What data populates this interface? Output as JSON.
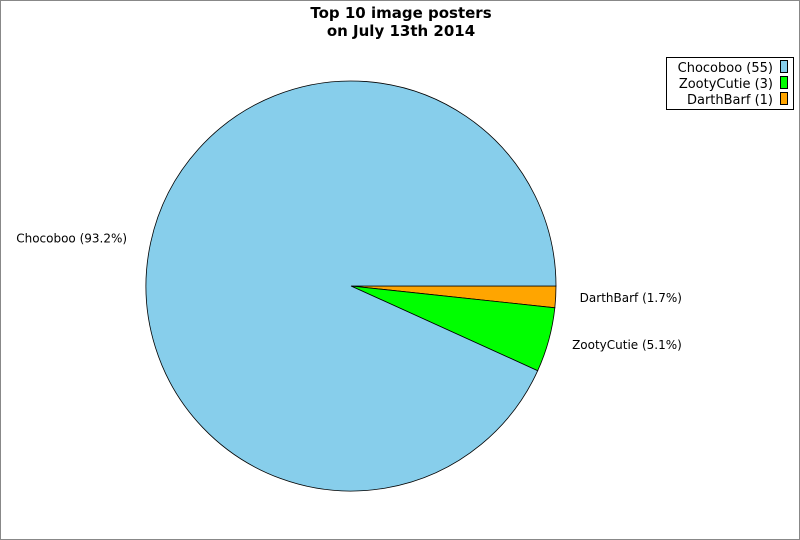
{
  "chart_data": {
    "type": "pie",
    "title": [
      "Top 10 image posters",
      "on July 13th 2014"
    ],
    "start_angle_deg": 0,
    "direction": "clockwise",
    "legend_position": "top-right",
    "slices": [
      {
        "label": "DarthBarf",
        "value": 1,
        "percent_label": "DarthBarf (1.7%)",
        "legend_label": "DarthBarf (1)",
        "color": "#ffa500"
      },
      {
        "label": "ZootyCutie",
        "value": 3,
        "percent_label": "ZootyCutie (5.1%)",
        "legend_label": "ZootyCutie (3)",
        "color": "#00ff00"
      },
      {
        "label": "Chocoboo",
        "value": 55,
        "percent_label": "Chocoboo (93.2%)",
        "legend_label": "Chocoboo (55)",
        "color": "#87ceeb"
      }
    ]
  }
}
